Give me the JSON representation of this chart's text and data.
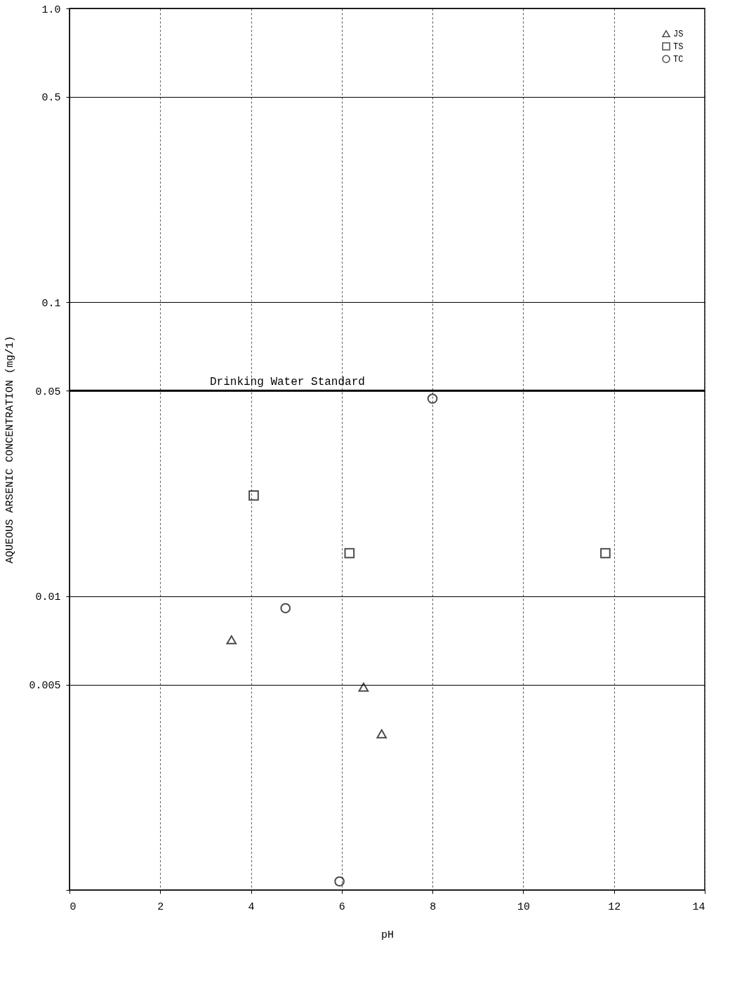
{
  "chart_data": {
    "type": "scatter",
    "xlabel": "pH",
    "ylabel": "AQUEOUS ARSENIC CONCENTRATION (mg/1)",
    "xlim": [
      0,
      14
    ],
    "xticks": [
      0,
      2,
      4,
      6,
      8,
      10,
      12,
      14
    ],
    "ylim": [
      0.001,
      1
    ],
    "yticks": [
      {
        "value": 0.001,
        "label": null
      },
      0.005,
      0.01,
      0.05,
      0.1,
      0.5,
      {
        "value": 1,
        "label": "1.0"
      }
    ],
    "log": "y",
    "grid": true,
    "legend": "top right",
    "series": [
      {
        "name": "JS",
        "color": "#000000",
        "marker": "triangle",
        "x": [
          3.57,
          6.48,
          6.88
        ],
        "values": [
          0.0071,
          0.0049,
          0.0034
        ]
      },
      {
        "name": "TS",
        "color": "#000000",
        "marker": "square",
        "x": [
          4.06,
          6.17,
          11.81
        ],
        "values": [
          0.022,
          0.014,
          0.014
        ]
      },
      {
        "name": "TC",
        "color": "#000000",
        "marker": "circle",
        "x": [
          8.0,
          4.76,
          5.95
        ],
        "values": [
          0.047,
          0.0091,
          0.00107
        ]
      }
    ],
    "ref_lines": [
      {
        "axis": "y",
        "value": 0.05,
        "label": "Drinking Water Standard",
        "color": "#000000"
      }
    ]
  }
}
